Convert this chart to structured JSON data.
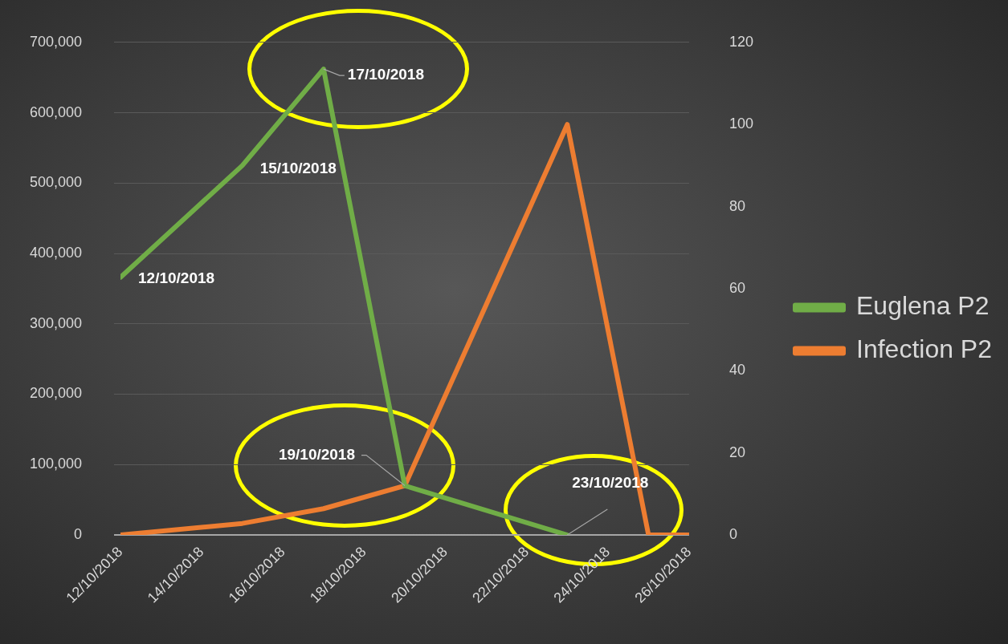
{
  "chart_data": {
    "type": "line",
    "series": [
      {
        "name": "Euglena P2",
        "color": "#70ad47",
        "x": [
          "2018-10-12",
          "2018-10-15",
          "2018-10-17",
          "2018-10-19",
          "2018-10-23"
        ],
        "values": [
          366000,
          525000,
          662000,
          70000,
          0
        ]
      },
      {
        "name": "Infection P2",
        "color": "#ed7d31",
        "axis": "y2",
        "x": [
          "2018-10-12",
          "2018-10-15",
          "2018-10-17",
          "2018-10-19",
          "2018-10-23",
          "2018-10-25",
          "2018-10-26"
        ],
        "values": [
          0,
          2.8,
          6.4,
          12,
          100,
          0,
          0
        ]
      }
    ],
    "xlim": [
      "2018-10-12",
      "2018-10-26"
    ],
    "xticks": [
      {
        "value": "2018-10-12",
        "label": "12/10/2018"
      },
      {
        "value": "2018-10-14",
        "label": "14/10/2018"
      },
      {
        "value": "2018-10-16",
        "label": "16/10/2018"
      },
      {
        "value": "2018-10-18",
        "label": "18/10/2018"
      },
      {
        "value": "2018-10-20",
        "label": "20/10/2018"
      },
      {
        "value": "2018-10-22",
        "label": "22/10/2018"
      },
      {
        "value": "2018-10-24",
        "label": "24/10/2018"
      },
      {
        "value": "2018-10-26",
        "label": "26/10/2018"
      }
    ],
    "ylim": [
      0,
      700000
    ],
    "yticks": [
      0,
      {
        "value": 100000,
        "label": "100,000"
      },
      {
        "value": 200000,
        "label": "200,000"
      },
      {
        "value": 300000,
        "label": "300,000"
      },
      {
        "value": 400000,
        "label": "400,000"
      },
      {
        "value": 500000,
        "label": "500,000"
      },
      {
        "value": 600000,
        "label": "600,000"
      },
      {
        "value": 700000,
        "label": "700,000"
      }
    ],
    "y2lim": [
      0,
      120
    ],
    "y2ticks": [
      0,
      20,
      40,
      60,
      80,
      100,
      120
    ],
    "annotations": [
      {
        "text": "12/10/2018",
        "x": "2018-10-12",
        "y": 366000
      },
      {
        "text": "15/10/2018",
        "x": "2018-10-15",
        "y": 525000
      },
      {
        "text": "17/10/2018",
        "x": "2018-10-17",
        "y": 662000
      },
      {
        "text": "19/10/2018",
        "x": "2018-10-19",
        "y": 70000
      },
      {
        "text": "23/10/2018",
        "x": "2018-10-23",
        "y": 0
      }
    ],
    "grid": "y",
    "legend": "right",
    "marker": "none",
    "line_style": "solid"
  }
}
